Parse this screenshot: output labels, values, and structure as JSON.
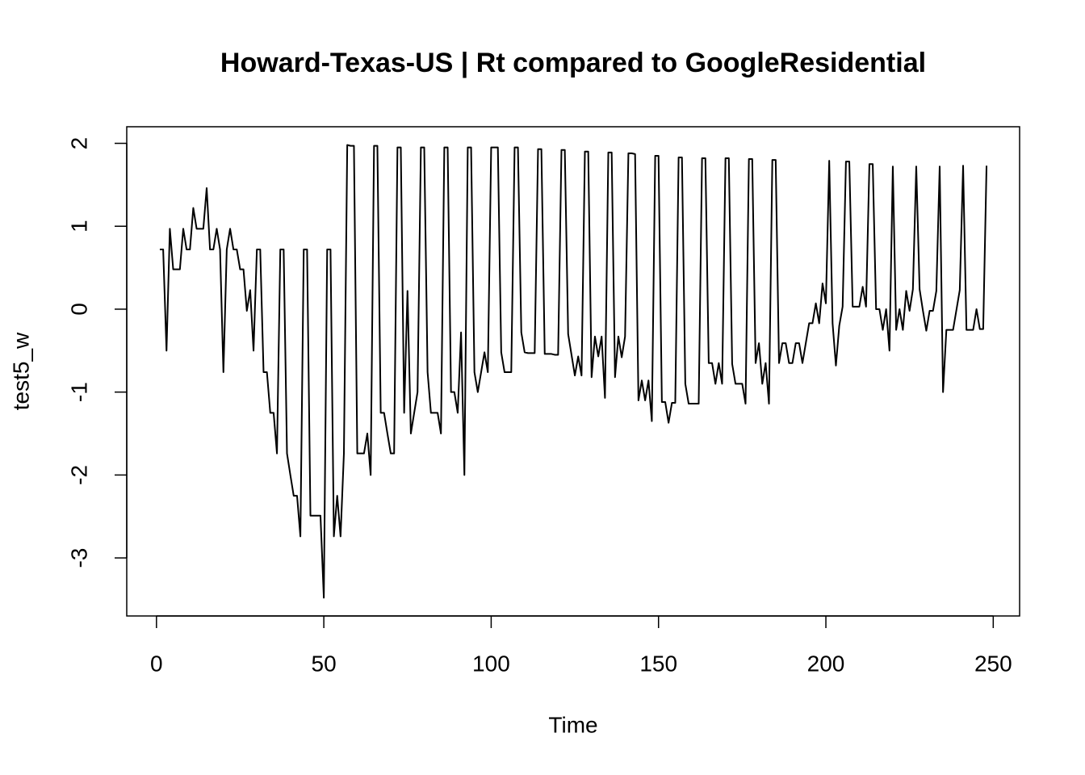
{
  "chart_data": {
    "type": "line",
    "title": "Howard-Texas-US | Rt compared to GoogleResidential",
    "x_label": "Time",
    "y_label": "test5_w",
    "x": [
      1,
      2,
      3,
      4,
      5,
      6,
      7,
      8,
      9,
      10,
      11,
      12,
      13,
      14,
      15,
      16,
      17,
      18,
      19,
      20,
      21,
      22,
      23,
      24,
      25,
      26,
      27,
      28,
      29,
      30,
      31,
      32,
      33,
      34,
      35,
      36,
      37,
      38,
      39,
      40,
      41,
      42,
      43,
      44,
      45,
      46,
      47,
      48,
      49,
      50,
      51,
      52,
      53,
      54,
      55,
      56,
      57,
      58,
      59,
      60,
      61,
      62,
      63,
      64,
      65,
      66,
      67,
      68,
      69,
      70,
      71,
      72,
      73,
      74,
      75,
      76,
      77,
      78,
      79,
      80,
      81,
      82,
      83,
      84,
      85,
      86,
      87,
      88,
      89,
      90,
      91,
      92,
      93,
      94,
      95,
      96,
      97,
      98,
      99,
      100,
      101,
      102,
      103,
      104,
      105,
      106,
      107,
      108,
      109,
      110,
      111,
      112,
      113,
      114,
      115,
      116,
      117,
      118,
      119,
      120,
      121,
      122,
      123,
      124,
      125,
      126,
      127,
      128,
      129,
      130,
      131,
      132,
      133,
      134,
      135,
      136,
      137,
      138,
      139,
      140,
      141,
      142,
      143,
      144,
      145,
      146,
      147,
      148,
      149,
      150,
      151,
      152,
      153,
      154,
      155,
      156,
      157,
      158,
      159,
      160,
      161,
      162,
      163,
      164,
      165,
      166,
      167,
      168,
      169,
      170,
      171,
      172,
      173,
      174,
      175,
      176,
      177,
      178,
      179,
      180,
      181,
      182,
      183,
      184,
      185,
      186,
      187,
      188,
      189,
      190,
      191,
      192,
      193,
      194,
      195,
      196,
      197,
      198,
      199,
      200,
      201,
      202,
      203,
      204,
      205,
      206,
      207,
      208,
      209,
      210,
      211,
      212,
      213,
      214,
      215,
      216,
      217,
      218,
      219,
      220,
      221,
      222,
      223,
      224,
      225,
      226,
      227,
      228,
      229,
      230,
      231,
      232,
      233,
      234,
      235,
      236,
      237,
      238,
      239,
      240,
      241,
      242,
      243,
      244,
      245,
      246,
      247,
      248
    ],
    "series": [
      {
        "name": "test5_w",
        "color": "#000000",
        "values": [
          0.72,
          0.72,
          -0.5,
          0.97,
          0.48,
          0.48,
          0.48,
          0.97,
          0.72,
          0.72,
          1.22,
          0.97,
          0.97,
          0.97,
          1.46,
          0.72,
          0.72,
          0.97,
          0.72,
          -0.76,
          0.72,
          0.97,
          0.72,
          0.72,
          0.48,
          0.48,
          -0.02,
          0.23,
          -0.5,
          0.72,
          0.72,
          -0.76,
          -0.76,
          -1.25,
          -1.25,
          -1.74,
          0.72,
          0.72,
          -1.74,
          -2.0,
          -2.25,
          -2.25,
          -2.74,
          0.72,
          0.72,
          -2.49,
          -2.49,
          -2.49,
          -2.49,
          -3.48,
          0.72,
          0.72,
          -2.74,
          -2.25,
          -2.74,
          -1.74,
          1.98,
          1.97,
          1.97,
          -1.74,
          -1.74,
          -1.74,
          -1.5,
          -2.0,
          1.97,
          1.97,
          -1.25,
          -1.25,
          -1.5,
          -1.74,
          -1.74,
          1.95,
          1.95,
          -1.25,
          0.22,
          -1.5,
          -1.25,
          -1.0,
          1.95,
          1.95,
          -0.76,
          -1.25,
          -1.25,
          -1.25,
          -1.5,
          1.95,
          1.95,
          -1.0,
          -1.0,
          -1.25,
          -0.28,
          -2.0,
          1.95,
          1.95,
          -0.76,
          -1.0,
          -0.76,
          -0.52,
          -0.76,
          1.95,
          1.95,
          1.95,
          -0.52,
          -0.76,
          -0.76,
          -0.76,
          1.95,
          1.95,
          -0.28,
          -0.52,
          -0.53,
          -0.53,
          -0.53,
          1.93,
          1.93,
          -0.54,
          -0.54,
          -0.54,
          -0.55,
          -0.55,
          1.92,
          1.92,
          -0.3,
          -0.55,
          -0.8,
          -0.57,
          -0.8,
          1.9,
          1.9,
          -0.82,
          -0.33,
          -0.57,
          -0.33,
          -1.07,
          1.89,
          1.89,
          -0.82,
          -0.33,
          -0.58,
          -0.33,
          1.88,
          1.88,
          1.87,
          -1.1,
          -0.86,
          -1.1,
          -0.86,
          -1.35,
          1.85,
          1.85,
          -1.12,
          -1.12,
          -1.37,
          -1.13,
          -1.13,
          1.83,
          1.83,
          -0.9,
          -1.14,
          -1.14,
          -1.14,
          -1.14,
          1.82,
          1.82,
          -0.65,
          -0.65,
          -0.9,
          -0.65,
          -0.9,
          1.82,
          1.82,
          -0.66,
          -0.9,
          -0.9,
          -0.9,
          -1.14,
          1.81,
          1.81,
          -0.65,
          -0.41,
          -0.9,
          -0.65,
          -1.14,
          1.8,
          1.8,
          -0.65,
          -0.41,
          -0.41,
          -0.65,
          -0.65,
          -0.41,
          -0.41,
          -0.65,
          -0.41,
          -0.17,
          -0.17,
          0.07,
          -0.17,
          0.31,
          0.07,
          1.79,
          -0.17,
          -0.68,
          -0.2,
          0.03,
          1.78,
          1.78,
          0.03,
          0.03,
          0.03,
          0.27,
          0.03,
          1.75,
          1.75,
          0.0,
          0.0,
          -0.25,
          0.0,
          -0.5,
          1.72,
          -0.25,
          0.0,
          -0.25,
          0.22,
          -0.02,
          0.24,
          1.72,
          0.24,
          -0.02,
          -0.26,
          -0.02,
          -0.02,
          0.22,
          1.72,
          -1.0,
          -0.25,
          -0.25,
          -0.25,
          -0.01,
          0.23,
          1.73,
          -0.25,
          -0.25,
          -0.25,
          0.0,
          -0.24,
          -0.24,
          1.73
        ]
      }
    ],
    "xlim": [
      -8.88,
      257.88
    ],
    "xticks": [
      0,
      50,
      100,
      150,
      200,
      250
    ],
    "ylim": [
      -3.7,
      2.2
    ],
    "yticks": [
      -3,
      -2,
      -1,
      0,
      1,
      2
    ]
  }
}
